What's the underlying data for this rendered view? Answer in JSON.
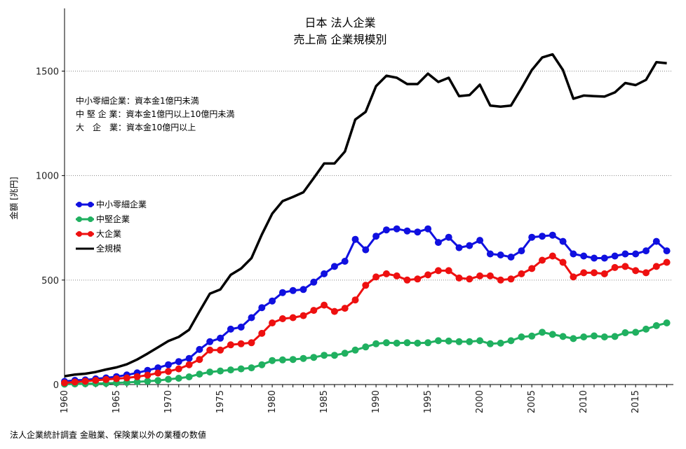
{
  "chart_data": {
    "type": "line",
    "title": "日本 法人企業",
    "subtitle": "売上高 企業規模別",
    "ylabel": "金額 [兆円]",
    "ylim": [
      0,
      1800
    ],
    "xlim": [
      1960,
      2018.5
    ],
    "yticks": [
      0,
      500,
      1000,
      1500
    ],
    "xticks": [
      1960,
      1965,
      1970,
      1975,
      1980,
      1985,
      1990,
      1995,
      2000,
      2005,
      2010,
      2015
    ],
    "grid": "horizontal dotted",
    "legend_position": "left-middle",
    "notes": [
      "中小零細企業：資本金1億円未満",
      "中 堅 企 業：資本金1億円以上10億円未満",
      "大　企　業：資本金10億円以上"
    ],
    "source": "法人企業統計調査 金融業、保険業以外の業種の数値",
    "x": [
      1960,
      1961,
      1962,
      1963,
      1964,
      1965,
      1966,
      1967,
      1968,
      1969,
      1970,
      1971,
      1972,
      1973,
      1974,
      1975,
      1976,
      1977,
      1978,
      1979,
      1980,
      1981,
      1982,
      1983,
      1984,
      1985,
      1986,
      1987,
      1988,
      1989,
      1990,
      1991,
      1992,
      1993,
      1994,
      1995,
      1996,
      1997,
      1998,
      1999,
      2000,
      2001,
      2002,
      2003,
      2004,
      2005,
      2006,
      2007,
      2008,
      2009,
      2010,
      2011,
      2012,
      2013,
      2014,
      2015,
      2016,
      2017,
      2018
    ],
    "series": [
      {
        "name": "中小零細企業",
        "color": "#1010e0",
        "markers": true,
        "values": [
          15,
          20,
          22,
          27,
          32,
          38,
          46,
          56,
          68,
          80,
          95,
          110,
          125,
          168,
          205,
          222,
          265,
          275,
          320,
          368,
          400,
          440,
          450,
          455,
          490,
          530,
          565,
          590,
          695,
          645,
          710,
          740,
          745,
          735,
          730,
          745,
          680,
          705,
          655,
          665,
          690,
          625,
          620,
          610,
          640,
          705,
          710,
          715,
          685,
          625,
          615,
          605,
          605,
          615,
          625,
          625,
          640,
          685,
          640
        ]
      },
      {
        "name": "中堅企業",
        "color": "#20b060",
        "markers": true,
        "values": [
          2,
          3,
          4,
          5,
          6,
          8,
          10,
          13,
          16,
          19,
          25,
          30,
          37,
          50,
          60,
          65,
          70,
          75,
          80,
          95,
          115,
          118,
          120,
          125,
          130,
          140,
          140,
          150,
          165,
          180,
          195,
          200,
          198,
          200,
          198,
          200,
          210,
          208,
          205,
          205,
          210,
          195,
          198,
          210,
          228,
          232,
          250,
          240,
          230,
          220,
          228,
          233,
          228,
          230,
          248,
          250,
          265,
          282,
          295
        ]
      },
      {
        "name": "大企業",
        "color": "#ee1010",
        "markers": true,
        "values": [
          8,
          12,
          16,
          20,
          24,
          28,
          32,
          38,
          45,
          55,
          63,
          75,
          95,
          120,
          165,
          165,
          190,
          195,
          200,
          245,
          295,
          315,
          320,
          330,
          355,
          380,
          350,
          365,
          405,
          475,
          515,
          530,
          520,
          500,
          505,
          525,
          545,
          545,
          510,
          505,
          520,
          520,
          500,
          505,
          530,
          555,
          595,
          615,
          585,
          515,
          535,
          535,
          530,
          560,
          565,
          545,
          535,
          565,
          585
        ]
      },
      {
        "name": "全規模",
        "color": "#000000",
        "markers": false,
        "values": [
          40,
          48,
          52,
          60,
          72,
          82,
          97,
          120,
          148,
          178,
          208,
          228,
          262,
          350,
          435,
          455,
          525,
          555,
          605,
          718,
          818,
          878,
          898,
          920,
          988,
          1058,
          1058,
          1115,
          1268,
          1305,
          1428,
          1478,
          1468,
          1438,
          1438,
          1488,
          1448,
          1468,
          1380,
          1385,
          1435,
          1335,
          1330,
          1335,
          1418,
          1505,
          1565,
          1580,
          1505,
          1368,
          1383,
          1380,
          1378,
          1398,
          1443,
          1433,
          1458,
          1543,
          1538
        ]
      }
    ]
  }
}
